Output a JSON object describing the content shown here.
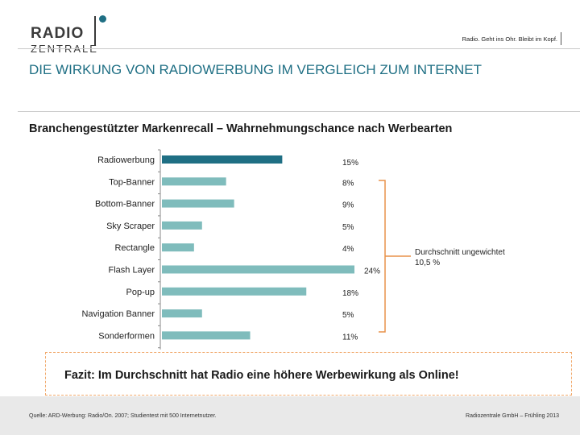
{
  "brand": {
    "logo_line1": "RADIO",
    "logo_line2": "ZENTRALE",
    "tagline": "Radio. Geht ins Ohr. Bleibt im Kopf.",
    "accent_color": "#1f6f84"
  },
  "page": {
    "title": "DIE WIRKUNG VON RADIOWERBUNG IM VERGLEICH ZUM INTERNET"
  },
  "chart_data": {
    "type": "bar",
    "orientation": "horizontal",
    "title": "Branchengestützter Markenrecall – Wahrnehmungschance nach Werbearten",
    "categories": [
      "Radiowerbung",
      "Top-Banner",
      "Bottom-Banner",
      "Sky Scraper",
      "Rectangle",
      "Flash Layer",
      "Pop-up",
      "Navigation Banner",
      "Sonderformen"
    ],
    "values": [
      15,
      8,
      9,
      5,
      4,
      24,
      18,
      5,
      11
    ],
    "value_labels": [
      "15%",
      "8%",
      "9%",
      "5%",
      "4%",
      "24%",
      "18%",
      "5%",
      "11%"
    ],
    "bar_colors": [
      "#1f6f84",
      "#7fbcbc",
      "#7fbcbc",
      "#7fbcbc",
      "#7fbcbc",
      "#7fbcbc",
      "#7fbcbc",
      "#7fbcbc",
      "#7fbcbc"
    ],
    "xlim": [
      0,
      24
    ],
    "grid": false,
    "annotation": {
      "text": "Durchschnitt ungewichtet 10,5 %",
      "bracket_color": "#e8924a"
    }
  },
  "conclusion": {
    "text": "Fazit: Im Durchschnitt hat Radio eine höhere Werbewirkung als Online!",
    "border_color": "#f1a96b"
  },
  "footer": {
    "source": "Quelle: ARD-Werbung: Radio/On. 2007; Studientest mit 500 Internetnutzer.",
    "credit": "Radiozentrale GmbH – Frühling 2013"
  }
}
